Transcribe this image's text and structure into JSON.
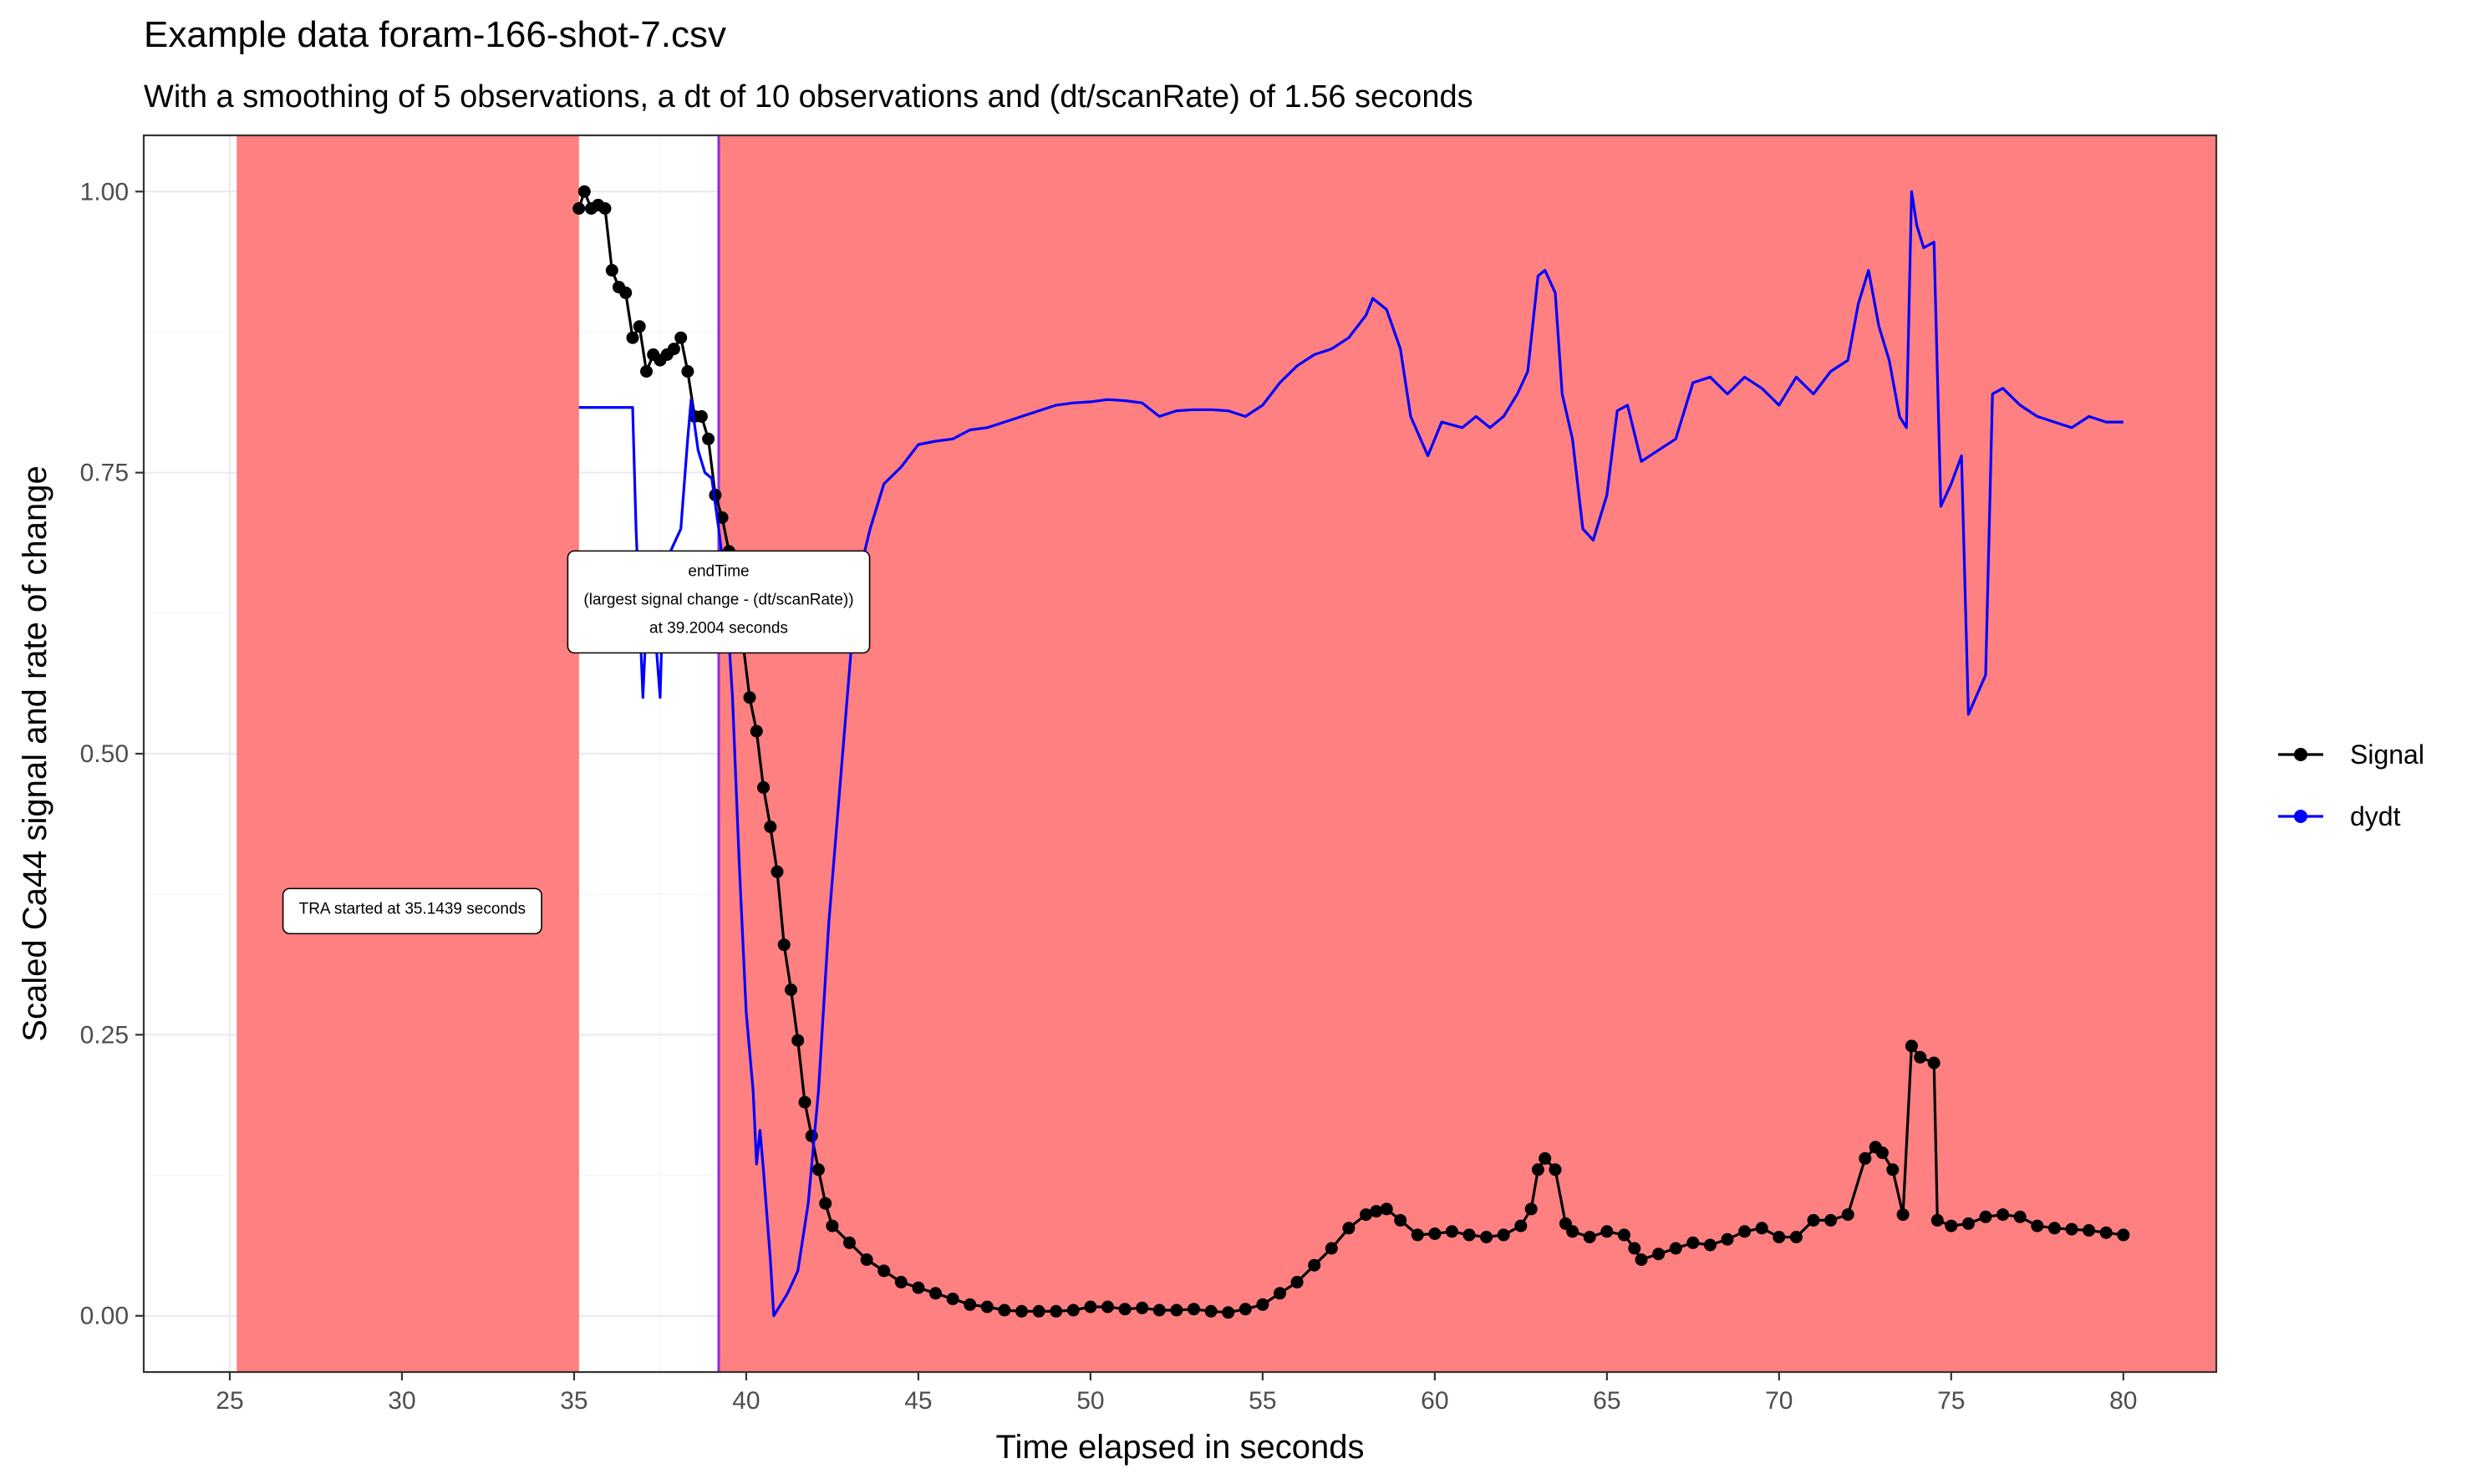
{
  "chart_data": {
    "type": "line",
    "title": "Example data foram-166-shot-7.csv",
    "subtitle": "With a smoothing of 5 observations, a dt of 10 observations and (dt/scanRate) of 1.56 seconds",
    "xlabel": "Time elapsed in seconds",
    "ylabel": "Scaled Ca44 signal and rate of change",
    "xlim": [
      22.5,
      82.7
    ],
    "ylim": [
      -0.05,
      1.05
    ],
    "x_ticks": [
      25,
      30,
      35,
      40,
      45,
      50,
      55,
      60,
      65,
      70,
      75,
      80
    ],
    "y_ticks": [
      0.0,
      0.25,
      0.5,
      0.75,
      1.0
    ],
    "y_tick_labels": [
      "0.00",
      "0.25",
      "0.50",
      "0.75",
      "1.00"
    ],
    "grid": true,
    "legend_position": "right",
    "shaded_regions": [
      {
        "x_start": 25.2,
        "x_end": 35.1439,
        "color": "#ff8080"
      },
      {
        "x_start": 39.2004,
        "x_end": 82.7,
        "color": "#ff8080"
      }
    ],
    "vertical_lines": [
      {
        "x": 39.2004,
        "color": "#8a2be2"
      }
    ],
    "annotations": [
      {
        "lines": [
          "endTime",
          "(largest signal change - (dt/scanRate))",
          "at 39.2004 seconds"
        ],
        "x": 39.2004,
        "y": 0.635
      },
      {
        "lines": [
          "TRA started at 35.1439 seconds"
        ],
        "x": 30.3,
        "y": 0.36
      }
    ],
    "series": [
      {
        "name": "Signal",
        "color": "#000000",
        "markers": true,
        "points": [
          [
            35.14,
            0.985
          ],
          [
            35.3,
            1.0
          ],
          [
            35.5,
            0.985
          ],
          [
            35.7,
            0.988
          ],
          [
            35.9,
            0.985
          ],
          [
            36.1,
            0.93
          ],
          [
            36.3,
            0.915
          ],
          [
            36.5,
            0.91
          ],
          [
            36.7,
            0.87
          ],
          [
            36.9,
            0.88
          ],
          [
            37.1,
            0.84
          ],
          [
            37.3,
            0.855
          ],
          [
            37.5,
            0.85
          ],
          [
            37.7,
            0.855
          ],
          [
            37.9,
            0.86
          ],
          [
            38.1,
            0.87
          ],
          [
            38.3,
            0.84
          ],
          [
            38.5,
            0.8
          ],
          [
            38.7,
            0.8
          ],
          [
            38.9,
            0.78
          ],
          [
            39.1,
            0.73
          ],
          [
            39.3,
            0.71
          ],
          [
            39.5,
            0.68
          ],
          [
            39.7,
            0.64
          ],
          [
            39.9,
            0.6
          ],
          [
            40.1,
            0.55
          ],
          [
            40.3,
            0.52
          ],
          [
            40.5,
            0.47
          ],
          [
            40.7,
            0.435
          ],
          [
            40.9,
            0.395
          ],
          [
            41.1,
            0.33
          ],
          [
            41.3,
            0.29
          ],
          [
            41.5,
            0.245
          ],
          [
            41.7,
            0.19
          ],
          [
            41.9,
            0.16
          ],
          [
            42.1,
            0.13
          ],
          [
            42.3,
            0.1
          ],
          [
            42.5,
            0.08
          ],
          [
            43.0,
            0.065
          ],
          [
            43.5,
            0.05
          ],
          [
            44.0,
            0.04
          ],
          [
            44.5,
            0.03
          ],
          [
            45.0,
            0.025
          ],
          [
            45.5,
            0.02
          ],
          [
            46.0,
            0.015
          ],
          [
            46.5,
            0.01
          ],
          [
            47.0,
            0.008
          ],
          [
            47.5,
            0.005
          ],
          [
            48.0,
            0.004
          ],
          [
            48.5,
            0.004
          ],
          [
            49.0,
            0.004
          ],
          [
            49.5,
            0.005
          ],
          [
            50.0,
            0.008
          ],
          [
            50.5,
            0.008
          ],
          [
            51.0,
            0.006
          ],
          [
            51.5,
            0.007
          ],
          [
            52.0,
            0.005
          ],
          [
            52.5,
            0.005
          ],
          [
            53.0,
            0.006
          ],
          [
            53.5,
            0.004
          ],
          [
            54.0,
            0.003
          ],
          [
            54.5,
            0.006
          ],
          [
            55.0,
            0.01
          ],
          [
            55.5,
            0.02
          ],
          [
            56.0,
            0.03
          ],
          [
            56.5,
            0.045
          ],
          [
            57.0,
            0.06
          ],
          [
            57.5,
            0.078
          ],
          [
            58.0,
            0.09
          ],
          [
            58.3,
            0.093
          ],
          [
            58.6,
            0.095
          ],
          [
            59.0,
            0.085
          ],
          [
            59.5,
            0.072
          ],
          [
            60.0,
            0.073
          ],
          [
            60.5,
            0.075
          ],
          [
            61.0,
            0.072
          ],
          [
            61.5,
            0.07
          ],
          [
            62.0,
            0.072
          ],
          [
            62.5,
            0.08
          ],
          [
            62.8,
            0.095
          ],
          [
            63.0,
            0.13
          ],
          [
            63.2,
            0.14
          ],
          [
            63.5,
            0.13
          ],
          [
            63.8,
            0.082
          ],
          [
            64.0,
            0.075
          ],
          [
            64.5,
            0.07
          ],
          [
            65.0,
            0.075
          ],
          [
            65.5,
            0.072
          ],
          [
            65.8,
            0.06
          ],
          [
            66.0,
            0.05
          ],
          [
            66.5,
            0.055
          ],
          [
            67.0,
            0.06
          ],
          [
            67.5,
            0.065
          ],
          [
            68.0,
            0.063
          ],
          [
            68.5,
            0.068
          ],
          [
            69.0,
            0.075
          ],
          [
            69.5,
            0.078
          ],
          [
            70.0,
            0.07
          ],
          [
            70.5,
            0.07
          ],
          [
            71.0,
            0.085
          ],
          [
            71.5,
            0.085
          ],
          [
            72.0,
            0.09
          ],
          [
            72.5,
            0.14
          ],
          [
            72.8,
            0.15
          ],
          [
            73.0,
            0.145
          ],
          [
            73.3,
            0.13
          ],
          [
            73.6,
            0.09
          ],
          [
            73.85,
            0.24
          ],
          [
            74.1,
            0.23
          ],
          [
            74.5,
            0.225
          ],
          [
            74.6,
            0.085
          ],
          [
            75.0,
            0.08
          ],
          [
            75.5,
            0.082
          ],
          [
            76.0,
            0.088
          ],
          [
            76.5,
            0.09
          ],
          [
            77.0,
            0.088
          ],
          [
            77.5,
            0.08
          ],
          [
            78.0,
            0.078
          ],
          [
            78.5,
            0.077
          ],
          [
            79.0,
            0.076
          ],
          [
            79.5,
            0.074
          ],
          [
            80.0,
            0.072
          ]
        ]
      },
      {
        "name": "dydt",
        "color": "#0000ff",
        "markers": false,
        "points": [
          [
            35.14,
            0.808
          ],
          [
            36.0,
            0.808
          ],
          [
            36.7,
            0.808
          ],
          [
            36.8,
            0.7
          ],
          [
            37.0,
            0.55
          ],
          [
            37.1,
            0.62
          ],
          [
            37.3,
            0.63
          ],
          [
            37.5,
            0.55
          ],
          [
            37.6,
            0.66
          ],
          [
            37.8,
            0.68
          ],
          [
            38.1,
            0.7
          ],
          [
            38.3,
            0.78
          ],
          [
            38.4,
            0.815
          ],
          [
            38.6,
            0.77
          ],
          [
            38.8,
            0.75
          ],
          [
            39.0,
            0.745
          ],
          [
            39.2,
            0.7
          ],
          [
            39.4,
            0.65
          ],
          [
            39.6,
            0.55
          ],
          [
            39.8,
            0.4
          ],
          [
            40.0,
            0.27
          ],
          [
            40.2,
            0.2
          ],
          [
            40.3,
            0.135
          ],
          [
            40.4,
            0.165
          ],
          [
            40.5,
            0.13
          ],
          [
            40.7,
            0.05
          ],
          [
            40.8,
            0.0
          ],
          [
            41.0,
            0.01
          ],
          [
            41.2,
            0.02
          ],
          [
            41.5,
            0.04
          ],
          [
            41.8,
            0.1
          ],
          [
            42.1,
            0.2
          ],
          [
            42.4,
            0.35
          ],
          [
            42.8,
            0.5
          ],
          [
            43.2,
            0.65
          ],
          [
            43.6,
            0.7
          ],
          [
            44.0,
            0.74
          ],
          [
            44.5,
            0.755
          ],
          [
            45.0,
            0.775
          ],
          [
            45.5,
            0.778
          ],
          [
            46.0,
            0.78
          ],
          [
            46.5,
            0.788
          ],
          [
            47.0,
            0.79
          ],
          [
            47.5,
            0.795
          ],
          [
            48.0,
            0.8
          ],
          [
            48.5,
            0.805
          ],
          [
            49.0,
            0.81
          ],
          [
            49.5,
            0.812
          ],
          [
            50.0,
            0.813
          ],
          [
            50.5,
            0.815
          ],
          [
            51.0,
            0.814
          ],
          [
            51.5,
            0.812
          ],
          [
            52.0,
            0.8
          ],
          [
            52.5,
            0.805
          ],
          [
            53.0,
            0.806
          ],
          [
            53.5,
            0.806
          ],
          [
            54.0,
            0.805
          ],
          [
            54.5,
            0.8
          ],
          [
            55.0,
            0.81
          ],
          [
            55.5,
            0.83
          ],
          [
            56.0,
            0.845
          ],
          [
            56.5,
            0.855
          ],
          [
            57.0,
            0.86
          ],
          [
            57.5,
            0.87
          ],
          [
            58.0,
            0.89
          ],
          [
            58.2,
            0.905
          ],
          [
            58.6,
            0.895
          ],
          [
            59.0,
            0.86
          ],
          [
            59.3,
            0.8
          ],
          [
            59.8,
            0.765
          ],
          [
            60.2,
            0.795
          ],
          [
            60.8,
            0.79
          ],
          [
            61.2,
            0.8
          ],
          [
            61.6,
            0.79
          ],
          [
            62.0,
            0.8
          ],
          [
            62.4,
            0.82
          ],
          [
            62.7,
            0.84
          ],
          [
            63.0,
            0.925
          ],
          [
            63.2,
            0.93
          ],
          [
            63.5,
            0.91
          ],
          [
            63.7,
            0.82
          ],
          [
            64.0,
            0.78
          ],
          [
            64.3,
            0.7
          ],
          [
            64.6,
            0.69
          ],
          [
            65.0,
            0.73
          ],
          [
            65.3,
            0.805
          ],
          [
            65.6,
            0.81
          ],
          [
            66.0,
            0.76
          ],
          [
            66.5,
            0.77
          ],
          [
            67.0,
            0.78
          ],
          [
            67.5,
            0.83
          ],
          [
            68.0,
            0.835
          ],
          [
            68.5,
            0.82
          ],
          [
            69.0,
            0.835
          ],
          [
            69.5,
            0.825
          ],
          [
            70.0,
            0.81
          ],
          [
            70.5,
            0.835
          ],
          [
            71.0,
            0.82
          ],
          [
            71.5,
            0.84
          ],
          [
            72.0,
            0.85
          ],
          [
            72.3,
            0.9
          ],
          [
            72.6,
            0.93
          ],
          [
            72.9,
            0.88
          ],
          [
            73.2,
            0.85
          ],
          [
            73.5,
            0.8
          ],
          [
            73.7,
            0.79
          ],
          [
            73.85,
            1.0
          ],
          [
            74.0,
            0.97
          ],
          [
            74.2,
            0.95
          ],
          [
            74.5,
            0.955
          ],
          [
            74.7,
            0.72
          ],
          [
            75.0,
            0.74
          ],
          [
            75.3,
            0.765
          ],
          [
            75.5,
            0.535
          ],
          [
            76.0,
            0.57
          ],
          [
            76.2,
            0.82
          ],
          [
            76.5,
            0.825
          ],
          [
            77.0,
            0.81
          ],
          [
            77.5,
            0.8
          ],
          [
            78.0,
            0.795
          ],
          [
            78.5,
            0.79
          ],
          [
            79.0,
            0.8
          ],
          [
            79.5,
            0.795
          ],
          [
            80.0,
            0.795
          ]
        ]
      }
    ]
  }
}
